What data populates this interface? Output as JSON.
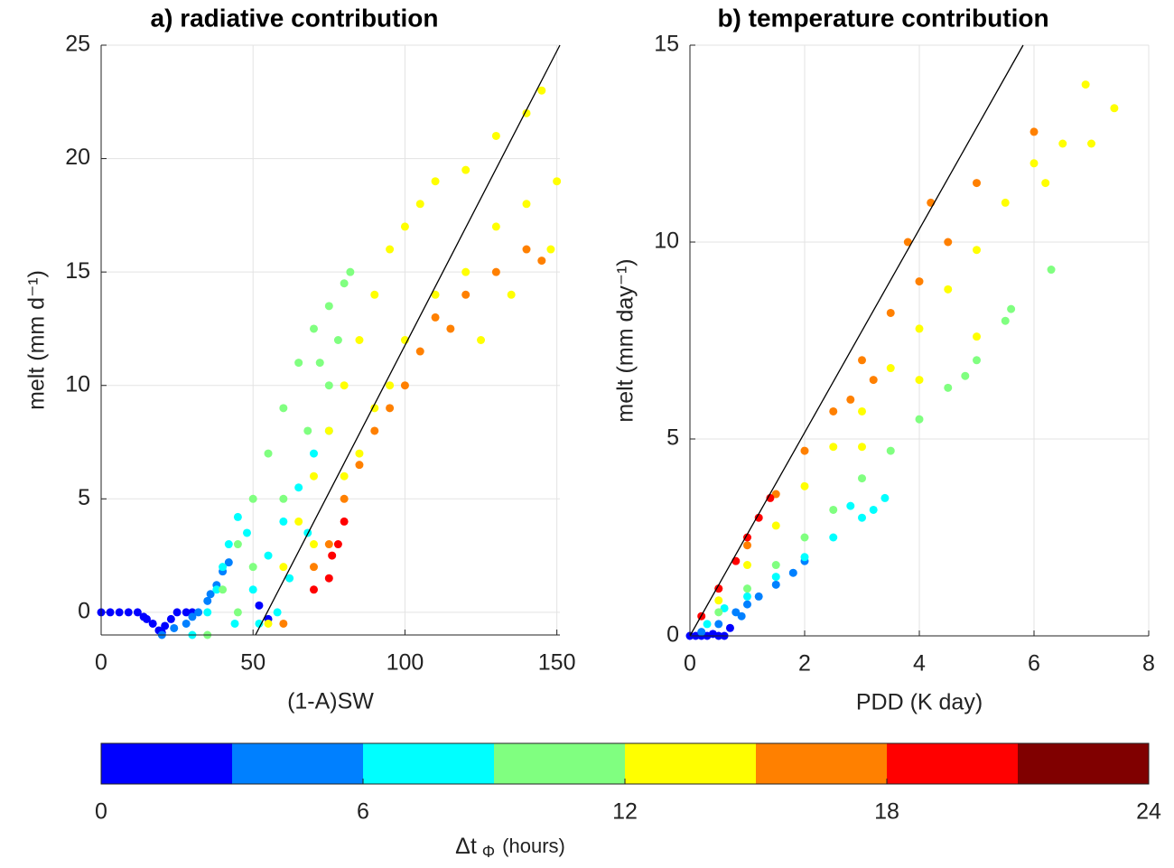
{
  "chart_data": [
    {
      "type": "scatter",
      "title": "a) radiative contribution",
      "xlabel": "(1-A)SW",
      "ylabel": "melt (mm d⁻¹)",
      "xlim": [
        0,
        151
      ],
      "ylim": [
        -1,
        25
      ],
      "xticks": [
        0,
        50,
        100,
        150
      ],
      "yticks": [
        0,
        5,
        10,
        15,
        20,
        25
      ],
      "grid": true,
      "reference_line": {
        "x": [
          50.8,
          151
        ],
        "y": [
          -1,
          25
        ],
        "color": "#000000"
      },
      "series": [
        {
          "color": "#0000ff",
          "x": [
            0,
            3,
            6,
            9,
            12,
            14,
            15,
            17,
            19,
            20,
            21,
            23,
            25,
            28,
            30,
            52,
            55
          ],
          "values": [
            0,
            0,
            0,
            0,
            0,
            -0.2,
            -0.3,
            -0.5,
            -0.8,
            -0.9,
            -0.6,
            -0.3,
            0,
            0,
            0,
            0.3,
            -0.3
          ]
        },
        {
          "color": "#0080ff",
          "x": [
            20,
            24,
            28,
            30,
            32,
            35,
            36,
            38,
            40,
            42
          ],
          "values": [
            -1,
            -0.7,
            -0.5,
            -0.2,
            0,
            0.5,
            0.8,
            1.2,
            1.8,
            2.2
          ]
        },
        {
          "color": "#00ffff",
          "x": [
            30,
            35,
            38,
            40,
            42,
            44,
            45,
            48,
            50,
            52,
            55,
            58,
            60,
            62,
            65,
            68,
            70,
            75
          ],
          "values": [
            -1,
            0,
            1,
            2,
            3,
            -0.5,
            4.2,
            3.5,
            1,
            -0.5,
            2.5,
            0,
            4,
            1.5,
            5.5,
            3.5,
            7,
            8
          ]
        },
        {
          "color": "#80ff80",
          "x": [
            35,
            40,
            45,
            45,
            50,
            50,
            55,
            60,
            60,
            65,
            68,
            70,
            72,
            75,
            75,
            78,
            80,
            82
          ],
          "values": [
            -1,
            1,
            3,
            0,
            5,
            2,
            7,
            9,
            5,
            11,
            8,
            12.5,
            11,
            13.5,
            10,
            12,
            14.5,
            15
          ]
        },
        {
          "color": "#ffff00",
          "x": [
            55,
            60,
            65,
            70,
            70,
            75,
            80,
            80,
            85,
            85,
            90,
            90,
            95,
            95,
            100,
            100,
            105,
            110,
            110,
            120,
            120,
            125,
            130,
            130,
            135,
            140,
            140,
            145,
            148,
            150
          ],
          "values": [
            -0.5,
            2,
            4,
            6,
            3,
            8,
            10,
            6,
            12,
            7,
            14,
            9,
            16,
            10,
            17,
            12,
            18,
            19,
            14,
            19.5,
            15,
            12,
            21,
            17,
            14,
            22,
            18,
            23,
            16,
            19
          ]
        },
        {
          "color": "#ff8000",
          "x": [
            60,
            70,
            75,
            80,
            85,
            90,
            95,
            100,
            105,
            110,
            115,
            120,
            130,
            140,
            145
          ],
          "values": [
            -0.5,
            2,
            3,
            5,
            6.5,
            8,
            9,
            10,
            11.5,
            13,
            12.5,
            14,
            15,
            16,
            15.5
          ]
        },
        {
          "color": "#ff0000",
          "x": [
            70,
            75,
            76,
            78,
            80
          ],
          "values": [
            1,
            1.5,
            2.5,
            3,
            4
          ]
        }
      ]
    },
    {
      "type": "scatter",
      "title": "b) temperature contribution",
      "xlabel": "PDD (K day)",
      "ylabel": "melt (mm day⁻¹)",
      "xlim": [
        0,
        8
      ],
      "ylim": [
        0,
        15
      ],
      "xticks": [
        0,
        2,
        4,
        6,
        8
      ],
      "yticks": [
        0,
        5,
        10,
        15
      ],
      "grid": true,
      "reference_line": {
        "x": [
          0,
          5.81
        ],
        "y": [
          0,
          15
        ],
        "color": "#000000"
      },
      "series": [
        {
          "color": "#0000ff",
          "x": [
            0,
            0.1,
            0.2,
            0.3,
            0.4,
            0.5,
            0.6,
            0.7
          ],
          "values": [
            0,
            0,
            0,
            0,
            0.05,
            0,
            0,
            0.2
          ]
        },
        {
          "color": "#0080ff",
          "x": [
            0.2,
            0.5,
            0.8,
            0.9,
            1,
            1.2,
            1.5,
            1.8,
            2
          ],
          "values": [
            0.1,
            0.3,
            0.6,
            0.5,
            0.8,
            1,
            1.3,
            1.6,
            1.9
          ]
        },
        {
          "color": "#00ffff",
          "x": [
            0.3,
            0.6,
            1,
            1.5,
            2,
            2.5,
            2.8,
            3,
            3.2,
            3.4
          ],
          "values": [
            0.3,
            0.7,
            1,
            1.5,
            2,
            2.5,
            3.3,
            3,
            3.2,
            3.5
          ]
        },
        {
          "color": "#80ff80",
          "x": [
            0.5,
            1,
            1.5,
            2,
            2.5,
            3,
            3.5,
            4,
            4.5,
            4.8,
            5,
            5.5,
            5.6,
            6.3
          ],
          "values": [
            0.6,
            1.2,
            1.8,
            2.5,
            3.2,
            4,
            4.7,
            5.5,
            6.3,
            6.6,
            7,
            8,
            8.3,
            9.3
          ]
        },
        {
          "color": "#ffff00",
          "x": [
            0.5,
            1,
            1.5,
            2,
            2.5,
            3,
            3,
            3.5,
            4,
            4,
            4.5,
            5,
            5,
            5.5,
            6,
            6.2,
            6.5,
            6.9,
            7,
            7.4
          ],
          "values": [
            0.9,
            1.8,
            2.8,
            3.8,
            4.8,
            5.7,
            4.8,
            6.8,
            7.8,
            6.5,
            8.8,
            9.8,
            7.6,
            11,
            12,
            11.5,
            12.5,
            14,
            12.5,
            13.4
          ]
        },
        {
          "color": "#ff8000",
          "x": [
            0.5,
            1,
            1.5,
            2,
            2.5,
            2.8,
            3,
            3.2,
            3.5,
            3.8,
            4,
            4.2,
            4.5,
            5,
            6
          ],
          "values": [
            1.2,
            2.3,
            3.6,
            4.7,
            5.7,
            6,
            7,
            6.5,
            8.2,
            10,
            9,
            11,
            10,
            11.5,
            12.8
          ]
        },
        {
          "color": "#ff0000",
          "x": [
            0.2,
            0.5,
            0.8,
            1,
            1.2,
            1.4
          ],
          "values": [
            0.5,
            1.2,
            1.9,
            2.5,
            3,
            3.5
          ]
        }
      ]
    }
  ],
  "colorbar": {
    "colors": [
      "#0000ff",
      "#0080ff",
      "#00ffff",
      "#80ff80",
      "#ffff00",
      "#ff8000",
      "#ff0000",
      "#800000"
    ],
    "clim": [
      0,
      24
    ],
    "ticks": [
      0,
      6,
      12,
      18,
      24
    ],
    "label": "Δt",
    "label_subscript": "Φ",
    "label_unit": "(hours)"
  }
}
